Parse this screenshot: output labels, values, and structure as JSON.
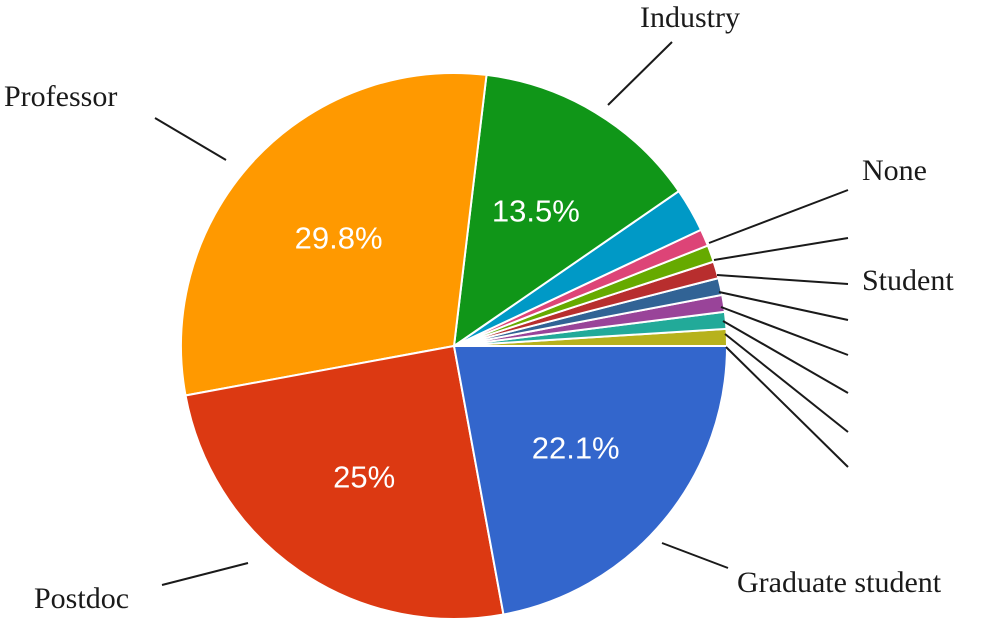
{
  "chart_data": {
    "type": "pie",
    "title": "",
    "start_angle": "3 o'clock, counter-clockwise",
    "slices": [
      {
        "label": "",
        "value": 1.0,
        "color": "#b7b21c",
        "data_label": ""
      },
      {
        "label": "",
        "value": 1.0,
        "color": "#22aa99",
        "data_label": ""
      },
      {
        "label": "",
        "value": 1.0,
        "color": "#994499",
        "data_label": ""
      },
      {
        "label": "",
        "value": 1.0,
        "color": "#316395",
        "data_label": ""
      },
      {
        "label": "Student",
        "value": 1.0,
        "color": "#b82e2e",
        "data_label": ""
      },
      {
        "label": "",
        "value": 1.0,
        "color": "#66aa00",
        "data_label": ""
      },
      {
        "label": "None",
        "value": 1.0,
        "color": "#dd4477",
        "data_label": ""
      },
      {
        "label": "",
        "value": 2.6,
        "color": "#0099c6",
        "data_label": ""
      },
      {
        "label": "Industry",
        "value": 13.5,
        "color": "#109618",
        "data_label": "13.5%"
      },
      {
        "label": "Professor",
        "value": 29.8,
        "color": "#ff9900",
        "data_label": "29.8%"
      },
      {
        "label": "Postdoc",
        "value": 25.0,
        "color": "#dc3912",
        "data_label": "25%"
      },
      {
        "label": "Graduate student",
        "value": 22.1,
        "color": "#3366cc",
        "data_label": "22.1%"
      }
    ]
  }
}
